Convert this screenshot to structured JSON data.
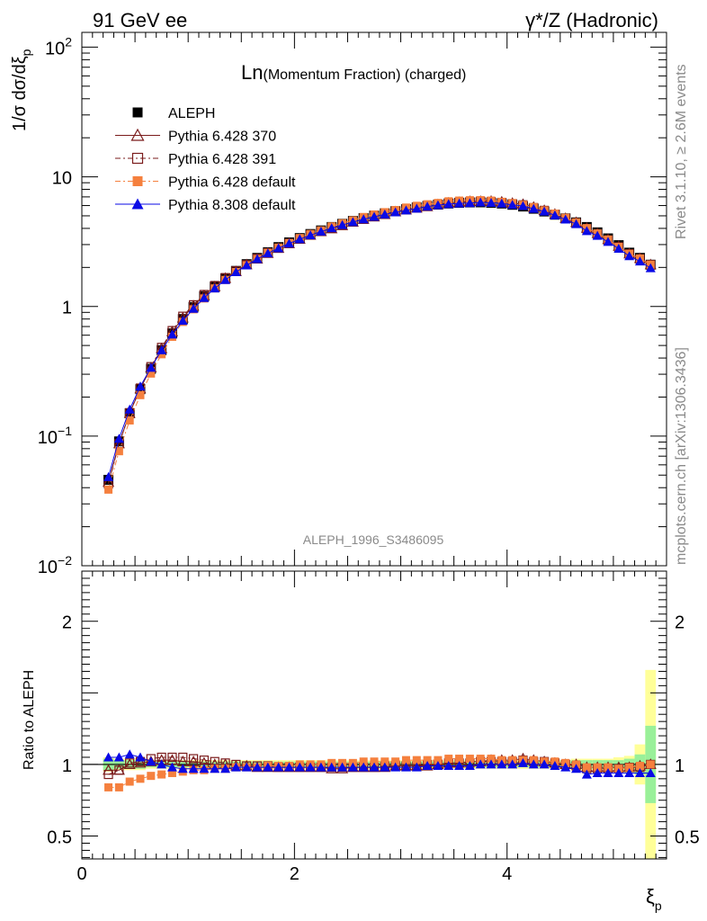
{
  "header": {
    "left": "91 GeV ee",
    "right": "γ*/Z (Hadronic)"
  },
  "side_labels": {
    "rivet": "Rivet 3.1.10, ≥ 2.6M events",
    "mcplots": "mcplots.cern.ch [arXiv:1306.3436]"
  },
  "chart_data": {
    "type": "scatter",
    "title_main": "Ln",
    "title_rest": "(Momentum Fraction) (charged)",
    "analysis": "ALEPH_1996_S3486095",
    "ylabel_top": "1/σ dσ/dξ",
    "ylabel_top_sub": "p",
    "ylabel_bottom": "Ratio to ALEPH",
    "xlabel": "ξ",
    "xlabel_sub": "p",
    "xlim": [
      0,
      5.5
    ],
    "ylim_top": [
      0.01,
      130
    ],
    "ylim_bottom": [
      0.34,
      2.35
    ],
    "top_scale": "log",
    "legend_position": "top-left",
    "xticks": [
      "0",
      "2",
      "4"
    ],
    "yticks_top": [
      {
        "base": "10",
        "exp": "2",
        "v": 100
      },
      {
        "base": "10",
        "exp": "",
        "v": 10
      },
      {
        "base": "1",
        "exp": "",
        "v": 1
      },
      {
        "base": "10",
        "exp": "−1",
        "v": 0.1
      },
      {
        "base": "10",
        "exp": "−2",
        "v": 0.01
      }
    ],
    "yticks_bottom": [
      "0.5",
      "1",
      "2"
    ],
    "x": [
      0.25,
      0.35,
      0.45,
      0.55,
      0.65,
      0.75,
      0.85,
      0.95,
      1.05,
      1.15,
      1.25,
      1.35,
      1.45,
      1.55,
      1.65,
      1.75,
      1.85,
      1.95,
      2.05,
      2.15,
      2.25,
      2.35,
      2.45,
      2.55,
      2.65,
      2.75,
      2.85,
      2.95,
      3.05,
      3.15,
      3.25,
      3.35,
      3.45,
      3.55,
      3.65,
      3.75,
      3.85,
      3.95,
      4.05,
      4.15,
      4.25,
      4.35,
      4.45,
      4.55,
      4.65,
      4.75,
      4.85,
      4.95,
      5.05,
      5.15,
      5.25,
      5.35
    ],
    "aleph": [
      0.046,
      0.091,
      0.15,
      0.23,
      0.33,
      0.46,
      0.62,
      0.8,
      0.99,
      1.2,
      1.42,
      1.65,
      1.88,
      2.12,
      2.37,
      2.62,
      2.87,
      3.12,
      3.37,
      3.62,
      3.86,
      4.1,
      4.34,
      4.57,
      4.8,
      5.02,
      5.23,
      5.43,
      5.62,
      5.8,
      5.96,
      6.1,
      6.22,
      6.3,
      6.34,
      6.35,
      6.3,
      6.22,
      6.08,
      5.9,
      5.67,
      5.4,
      5.1,
      4.78,
      4.45,
      4.1,
      3.73,
      3.35,
      2.97,
      2.6,
      2.37,
      2.1
    ],
    "series": [
      {
        "name": "ALEPH",
        "color": "#000000",
        "marker": "square-filled",
        "line": "none",
        "ratio": [
          1,
          1,
          1,
          1,
          1,
          1,
          1,
          1,
          1,
          1,
          1,
          1,
          1,
          1,
          1,
          1,
          1,
          1,
          1,
          1,
          1,
          1,
          1,
          1,
          1,
          1,
          1,
          1,
          1,
          1,
          1,
          1,
          1,
          1,
          1,
          1,
          1,
          1,
          1,
          1,
          1,
          1,
          1,
          1,
          1,
          1,
          1,
          1,
          1,
          1,
          1,
          1
        ]
      },
      {
        "name": "Pythia 6.428 370",
        "color": "#7a1b1b",
        "marker": "triangle-open",
        "line": "solid",
        "ratio": [
          0.96,
          0.96,
          1.0,
          1.01,
          1.02,
          1.03,
          1.03,
          1.02,
          1.02,
          1.01,
          1.0,
          1.0,
          0.99,
          0.99,
          0.98,
          0.98,
          0.98,
          0.98,
          0.98,
          0.98,
          0.98,
          0.97,
          0.97,
          0.98,
          0.98,
          0.98,
          0.98,
          0.99,
          0.99,
          0.99,
          0.99,
          1.0,
          1.01,
          1.01,
          1.02,
          1.02,
          1.03,
          1.03,
          1.03,
          1.04,
          1.03,
          1.02,
          1.01,
          1.0,
          1.0,
          0.98,
          0.98,
          0.98,
          0.98,
          0.98,
          0.99,
          1.0
        ]
      },
      {
        "name": "Pythia 6.428 391",
        "color": "#7a1b1b",
        "marker": "square-open",
        "line": "dashdot",
        "ratio": [
          0.93,
          0.96,
          1.01,
          1.02,
          1.04,
          1.05,
          1.05,
          1.05,
          1.04,
          1.03,
          1.02,
          1.01,
          1.0,
          0.99,
          0.99,
          0.99,
          0.98,
          0.98,
          0.98,
          0.98,
          0.98,
          0.98,
          0.98,
          0.98,
          0.98,
          0.98,
          0.99,
          0.99,
          0.99,
          0.99,
          1.0,
          1.0,
          1.01,
          1.01,
          1.01,
          1.02,
          1.02,
          1.02,
          1.02,
          1.03,
          1.02,
          1.02,
          1.01,
          1.0,
          0.99,
          0.97,
          0.97,
          0.97,
          0.97,
          0.98,
          0.98,
          1.0
        ]
      },
      {
        "name": "Pythia 6.428 default",
        "color": "#f5803e",
        "marker": "square-filled",
        "line": "dashdot",
        "ratio": [
          0.84,
          0.84,
          0.88,
          0.9,
          0.92,
          0.93,
          0.94,
          0.95,
          0.96,
          0.96,
          0.97,
          0.97,
          0.98,
          0.98,
          0.98,
          0.99,
          0.99,
          0.99,
          1.0,
          1.0,
          1.0,
          1.01,
          1.01,
          1.01,
          1.02,
          1.02,
          1.02,
          1.02,
          1.03,
          1.03,
          1.03,
          1.03,
          1.04,
          1.04,
          1.04,
          1.04,
          1.04,
          1.03,
          1.03,
          1.03,
          1.03,
          1.02,
          1.02,
          1.01,
          1.0,
          0.98,
          0.98,
          0.98,
          0.97,
          0.98,
          0.99,
          1.0
        ]
      },
      {
        "name": "Pythia 8.308 default",
        "color": "#0a0ae6",
        "marker": "triangle-filled",
        "line": "solid",
        "ratio": [
          1.05,
          1.05,
          1.07,
          1.05,
          1.02,
          1.0,
          0.98,
          0.97,
          0.97,
          0.97,
          0.97,
          0.97,
          0.98,
          0.98,
          0.98,
          0.98,
          0.98,
          0.98,
          0.98,
          0.98,
          0.98,
          0.98,
          0.98,
          0.98,
          0.98,
          0.98,
          0.98,
          0.98,
          0.98,
          0.98,
          0.99,
          0.99,
          0.99,
          0.99,
          0.99,
          1.0,
          1.0,
          1.0,
          1.0,
          1.01,
          1.0,
          1.0,
          0.99,
          0.98,
          0.97,
          0.93,
          0.94,
          0.94,
          0.94,
          0.94,
          0.94,
          0.94
        ]
      }
    ],
    "uncertainty_band": {
      "green_halfwidth": [
        0.04,
        0.03,
        0.03,
        0.03,
        0.02,
        0.02,
        0.02,
        0.02,
        0.02,
        0.02,
        0.02,
        0.02,
        0.02,
        0.02,
        0.02,
        0.02,
        0.02,
        0.02,
        0.02,
        0.02,
        0.02,
        0.02,
        0.02,
        0.02,
        0.02,
        0.02,
        0.02,
        0.02,
        0.02,
        0.02,
        0.02,
        0.02,
        0.02,
        0.02,
        0.02,
        0.02,
        0.02,
        0.02,
        0.02,
        0.02,
        0.02,
        0.02,
        0.02,
        0.02,
        0.03,
        0.03,
        0.03,
        0.03,
        0.03,
        0.04,
        0.07,
        0.27
      ],
      "yellow_halfwidth": [
        0.05,
        0.04,
        0.04,
        0.04,
        0.03,
        0.03,
        0.03,
        0.03,
        0.03,
        0.03,
        0.03,
        0.03,
        0.03,
        0.03,
        0.03,
        0.03,
        0.03,
        0.03,
        0.03,
        0.03,
        0.03,
        0.03,
        0.03,
        0.03,
        0.03,
        0.03,
        0.03,
        0.03,
        0.03,
        0.03,
        0.03,
        0.03,
        0.03,
        0.03,
        0.03,
        0.03,
        0.03,
        0.03,
        0.03,
        0.03,
        0.03,
        0.03,
        0.03,
        0.03,
        0.04,
        0.04,
        0.04,
        0.04,
        0.05,
        0.06,
        0.14,
        0.66
      ]
    }
  }
}
